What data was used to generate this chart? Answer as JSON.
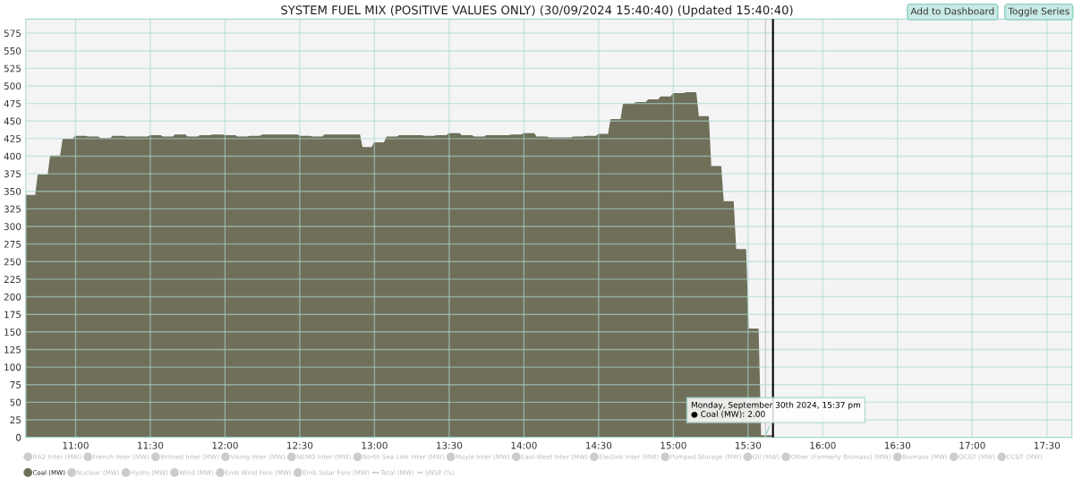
{
  "chart_data": {
    "type": "area",
    "title": "SYSTEM FUEL MIX (POSITIVE VALUES ONLY) (30/09/2024 15:40:40) (Updated 15:40:40)",
    "series": [
      {
        "name": "IFA2 Inter (MW)",
        "color": "#cccccc"
      },
      {
        "name": "French Inter (MW)",
        "color": "#cccccc"
      },
      {
        "name": "Britned Inter (MW)",
        "color": "#cccccc"
      },
      {
        "name": "Viking Inter (MW)",
        "color": "#cccccc"
      },
      {
        "name": "NEMO Inter (MW)",
        "color": "#cccccc"
      },
      {
        "name": "North Sea Link Inter (MW)",
        "color": "#cccccc"
      },
      {
        "name": "Moyle Inter (MW)",
        "color": "#cccccc"
      },
      {
        "name": "East-West Inter (MW)",
        "color": "#cccccc"
      },
      {
        "name": "Eleclink Inter (MW)",
        "color": "#cccccc"
      },
      {
        "name": "Pumped Storage (MW)",
        "color": "#cccccc"
      },
      {
        "name": "Oil (MW)",
        "color": "#cccccc"
      },
      {
        "name": "Other (Formerly Biomass) (MW)",
        "color": "#cccccc"
      },
      {
        "name": "Biomass (MW)",
        "color": "#cccccc"
      },
      {
        "name": "OCGT (MW)",
        "color": "#cccccc"
      },
      {
        "name": "CCGT (MW)",
        "color": "#cccccc"
      },
      {
        "name": "Coal (MW)",
        "color": "#706f5a",
        "x": [
          "2024-09-30T10:40",
          "2024-09-30T10:44",
          "2024-09-30T10:45",
          "2024-09-30T10:49",
          "2024-09-30T10:50",
          "2024-09-30T10:54",
          "2024-09-30T10:55",
          "2024-09-30T10:59",
          "2024-09-30T11:00",
          "2024-09-30T11:04",
          "2024-09-30T11:05",
          "2024-09-30T11:09",
          "2024-09-30T11:10",
          "2024-09-30T11:14",
          "2024-09-30T11:15",
          "2024-09-30T11:19",
          "2024-09-30T11:20",
          "2024-09-30T11:24",
          "2024-09-30T11:25",
          "2024-09-30T11:29",
          "2024-09-30T11:30",
          "2024-09-30T11:34",
          "2024-09-30T11:35",
          "2024-09-30T11:39",
          "2024-09-30T11:40",
          "2024-09-30T11:44",
          "2024-09-30T11:45",
          "2024-09-30T11:49",
          "2024-09-30T11:50",
          "2024-09-30T11:54",
          "2024-09-30T11:55",
          "2024-09-30T11:59",
          "2024-09-30T12:00",
          "2024-09-30T12:04",
          "2024-09-30T12:05",
          "2024-09-30T12:09",
          "2024-09-30T12:10",
          "2024-09-30T12:14",
          "2024-09-30T12:15",
          "2024-09-30T12:19",
          "2024-09-30T12:20",
          "2024-09-30T12:24",
          "2024-09-30T12:25",
          "2024-09-30T12:29",
          "2024-09-30T12:30",
          "2024-09-30T12:34",
          "2024-09-30T12:35",
          "2024-09-30T12:39",
          "2024-09-30T12:40",
          "2024-09-30T12:44",
          "2024-09-30T12:45",
          "2024-09-30T12:49",
          "2024-09-30T12:50",
          "2024-09-30T12:54",
          "2024-09-30T12:55",
          "2024-09-30T12:59",
          "2024-09-30T13:00",
          "2024-09-30T13:04",
          "2024-09-30T13:05",
          "2024-09-30T13:09",
          "2024-09-30T13:10",
          "2024-09-30T13:14",
          "2024-09-30T13:15",
          "2024-09-30T13:19",
          "2024-09-30T13:20",
          "2024-09-30T13:24",
          "2024-09-30T13:25",
          "2024-09-30T13:29",
          "2024-09-30T13:30",
          "2024-09-30T13:34",
          "2024-09-30T13:35",
          "2024-09-30T13:39",
          "2024-09-30T13:40",
          "2024-09-30T13:44",
          "2024-09-30T13:45",
          "2024-09-30T13:49",
          "2024-09-30T13:50",
          "2024-09-30T13:54",
          "2024-09-30T13:55",
          "2024-09-30T13:59",
          "2024-09-30T14:00",
          "2024-09-30T14:04",
          "2024-09-30T14:05",
          "2024-09-30T14:09",
          "2024-09-30T14:10",
          "2024-09-30T14:14",
          "2024-09-30T14:15",
          "2024-09-30T14:19",
          "2024-09-30T14:20",
          "2024-09-30T14:24",
          "2024-09-30T14:25",
          "2024-09-30T14:29",
          "2024-09-30T14:30",
          "2024-09-30T14:34",
          "2024-09-30T14:35",
          "2024-09-30T14:39",
          "2024-09-30T14:40",
          "2024-09-30T14:44",
          "2024-09-30T14:45",
          "2024-09-30T14:49",
          "2024-09-30T14:50",
          "2024-09-30T14:54",
          "2024-09-30T14:55",
          "2024-09-30T14:59",
          "2024-09-30T15:00",
          "2024-09-30T15:04",
          "2024-09-30T15:05",
          "2024-09-30T15:09",
          "2024-09-30T15:10",
          "2024-09-30T15:14",
          "2024-09-30T15:15",
          "2024-09-30T15:19",
          "2024-09-30T15:20",
          "2024-09-30T15:24",
          "2024-09-30T15:25",
          "2024-09-30T15:29",
          "2024-09-30T15:30",
          "2024-09-30T15:34",
          "2024-09-30T15:35",
          "2024-09-30T15:40"
        ],
        "values": [
          344,
          344,
          373,
          373,
          400,
          400,
          424,
          424,
          428,
          428,
          427,
          427,
          425,
          425,
          428,
          428,
          427,
          427,
          427,
          427,
          429,
          429,
          427,
          427,
          430,
          430,
          427,
          427,
          429,
          429,
          430,
          430,
          429,
          429,
          427,
          427,
          428,
          428,
          430,
          430,
          430,
          430,
          430,
          430,
          428,
          428,
          427,
          427,
          430,
          430,
          430,
          430,
          430,
          430,
          412,
          412,
          419,
          419,
          427,
          427,
          429,
          429,
          429,
          429,
          428,
          428,
          429,
          429,
          432,
          432,
          429,
          429,
          427,
          427,
          429,
          429,
          429,
          429,
          430,
          430,
          432,
          432,
          427,
          427,
          426,
          426,
          426,
          426,
          427,
          427,
          428,
          428,
          431,
          431,
          452,
          452,
          474,
          474,
          476,
          476,
          480,
          480,
          484,
          484,
          489,
          489,
          490,
          490,
          456,
          456,
          385,
          385,
          335,
          335,
          267,
          267,
          154,
          154,
          2,
          2
        ]
      },
      {
        "name": "Nuclear (MW)",
        "color": "#cccccc"
      },
      {
        "name": "Hydro (MW)",
        "color": "#cccccc"
      },
      {
        "name": "Wind (MW)",
        "color": "#cccccc"
      },
      {
        "name": "Emb Wind Fore (MW)",
        "color": "#cccccc"
      },
      {
        "name": "Emb Solar Fore (MW)",
        "color": "#cccccc"
      },
      {
        "name": "Total (MW)",
        "type": "line",
        "color": "#cccccc"
      },
      {
        "name": "SNSP (%)",
        "type": "line",
        "line_style": "dashed",
        "color": "#cccccc"
      }
    ],
    "xlim": [
      "2024-09-30T10:40",
      "2024-09-30T17:40"
    ],
    "xticks": [
      {
        "value": "2024-09-30T11:00",
        "label": "11:00"
      },
      {
        "value": "2024-09-30T11:30",
        "label": "11:30"
      },
      {
        "value": "2024-09-30T12:00",
        "label": "12:00"
      },
      {
        "value": "2024-09-30T12:30",
        "label": "12:30"
      },
      {
        "value": "2024-09-30T13:00",
        "label": "13:00"
      },
      {
        "value": "2024-09-30T13:30",
        "label": "13:30"
      },
      {
        "value": "2024-09-30T14:00",
        "label": "14:00"
      },
      {
        "value": "2024-09-30T14:30",
        "label": "14:30"
      },
      {
        "value": "2024-09-30T15:00",
        "label": "15:00"
      },
      {
        "value": "2024-09-30T15:30",
        "label": "15:30"
      },
      {
        "value": "2024-09-30T16:00",
        "label": "16:00"
      },
      {
        "value": "2024-09-30T16:30",
        "label": "16:30"
      },
      {
        "value": "2024-09-30T17:00",
        "label": "17:00"
      },
      {
        "value": "2024-09-30T17:30",
        "label": "17:30"
      }
    ],
    "ylim": [
      0,
      595
    ],
    "yticks": [
      0,
      25,
      50,
      75,
      100,
      125,
      150,
      175,
      200,
      225,
      250,
      275,
      300,
      325,
      350,
      375,
      400,
      425,
      450,
      475,
      500,
      525,
      550,
      575
    ],
    "grid": true,
    "legend": "bottom",
    "ref_lines": [
      {
        "axis": "x",
        "value": "2024-09-30T15:37",
        "color": "#cccccc"
      },
      {
        "axis": "x",
        "value": "2024-09-30T15:40",
        "color": "#000000"
      }
    ],
    "annotations": [
      {
        "text": "Monday, September 30th 2024, 15:37 pm\n● Coal (MW): 2.00",
        "x": "2024-09-30T15:37",
        "y": 2
      },
      "Add to Dashboard",
      "Toggle Series"
    ]
  }
}
